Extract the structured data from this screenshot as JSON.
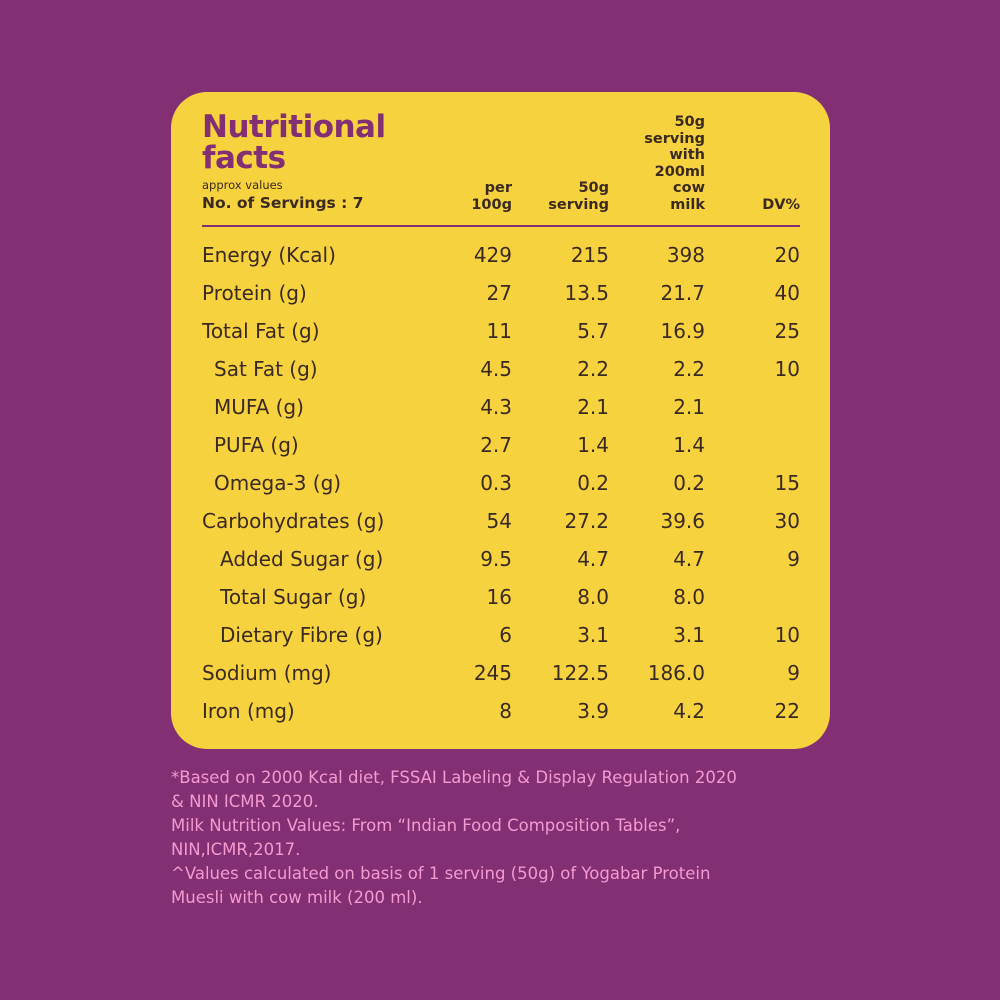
{
  "title": [
    "Nutritional",
    "facts"
  ],
  "subtitle": "approx values",
  "servings": "No. of Servings : 7",
  "columns": {
    "per100": [
      "per",
      "100g"
    ],
    "serving": [
      "50g",
      "serving"
    ],
    "milk": [
      "50g",
      "serving",
      "with",
      "200ml",
      "cow",
      "milk"
    ],
    "dv": [
      "DV%"
    ]
  },
  "rows": [
    {
      "label": "Energy (Kcal)",
      "per100": "429",
      "serving": "215",
      "milk": "398",
      "dv": "20",
      "indent": 0
    },
    {
      "label": "Protein (g)",
      "per100": "27",
      "serving": "13.5",
      "milk": "21.7",
      "dv": "40",
      "indent": 0
    },
    {
      "label": "Total Fat (g)",
      "per100": "11",
      "serving": "5.7",
      "milk": "16.9",
      "dv": "25",
      "indent": 0
    },
    {
      "label": "Sat Fat (g)",
      "per100": "4.5",
      "serving": "2.2",
      "milk": "2.2",
      "dv": "10",
      "indent": 1
    },
    {
      "label": "MUFA (g)",
      "per100": "4.3",
      "serving": "2.1",
      "milk": "2.1",
      "dv": "",
      "indent": 1
    },
    {
      "label": "PUFA (g)",
      "per100": "2.7",
      "serving": "1.4",
      "milk": "1.4",
      "dv": "",
      "indent": 1
    },
    {
      "label": "Omega-3 (g)",
      "per100": "0.3",
      "serving": "0.2",
      "milk": "0.2",
      "dv": "15",
      "indent": 1
    },
    {
      "label": "Carbohydrates (g)",
      "per100": "54",
      "serving": "27.2",
      "milk": "39.6",
      "dv": "30",
      "indent": 0
    },
    {
      "label": "Added Sugar (g)",
      "per100": "9.5",
      "serving": "4.7",
      "milk": "4.7",
      "dv": "9",
      "indent": 2
    },
    {
      "label": "Total Sugar (g)",
      "per100": "16",
      "serving": "8.0",
      "milk": "8.0",
      "dv": "",
      "indent": 2
    },
    {
      "label": "Dietary Fibre (g)",
      "per100": "6",
      "serving": "3.1",
      "milk": "3.1",
      "dv": "10",
      "indent": 2
    },
    {
      "label": "Sodium (mg)",
      "per100": "245",
      "serving": "122.5",
      "milk": "186.0",
      "dv": "9",
      "indent": 0
    },
    {
      "label": "Iron (mg)",
      "per100": "8",
      "serving": "3.9",
      "milk": "4.2",
      "dv": "22",
      "indent": 0
    }
  ],
  "footnotes": [
    "*Based on 2000 Kcal diet, FSSAI Labeling & Display Regulation 2020",
    "& NIN ICMR 2020.",
    "Milk Nutrition Values: From “Indian Food Composition Tables”,",
    "NIN,ICMR,2017.",
    "^Values calculated on basis of 1 serving (50g) of Yogabar Protein",
    "Muesli with cow milk (200 ml)."
  ],
  "colors": {
    "background": "#832f73",
    "card": "#f7d23f",
    "title": "#832f73",
    "text": "#3a2a20",
    "footnote": "#f49ad0"
  }
}
